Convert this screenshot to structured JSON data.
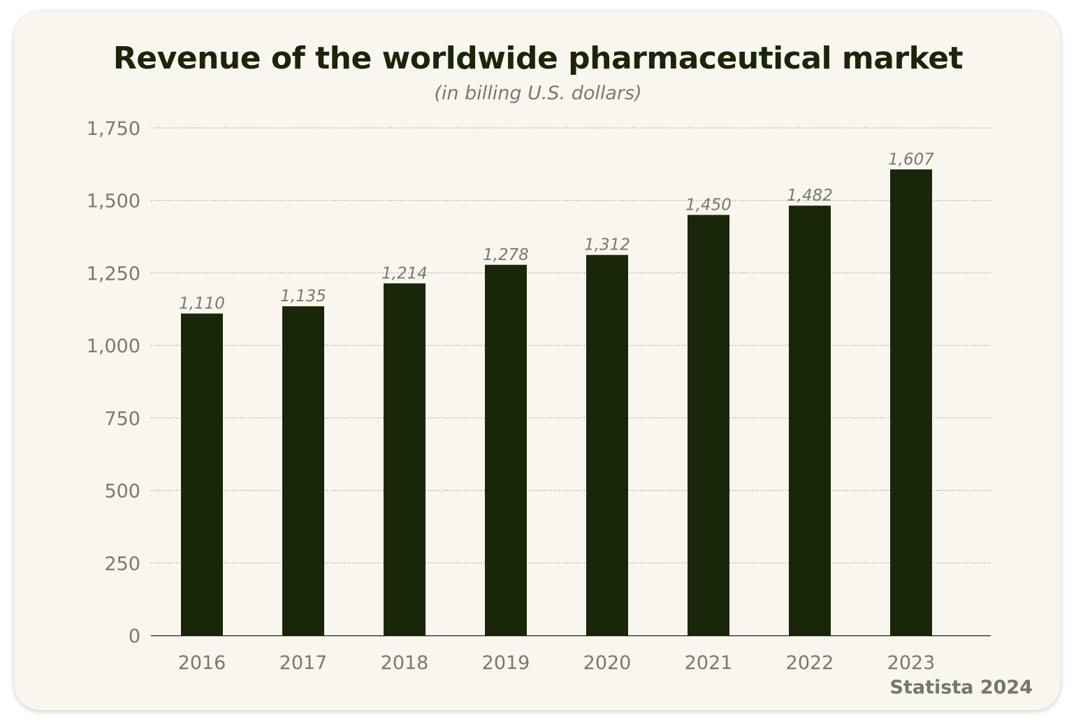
{
  "title": "Revenue of the worldwide pharmaceutical market",
  "subtitle": "(in billing U.S. dollars)",
  "source": "Statista 2024",
  "colors": {
    "bar": "#1a2608",
    "card_background": "#f9f6ef",
    "title": "#1a2608",
    "axis_text": "#7a7a6a",
    "gridline": "#8a8a80"
  },
  "chart_data": {
    "type": "bar",
    "title": "Revenue of the worldwide pharmaceutical market",
    "subtitle": "(in billing U.S. dollars)",
    "xlabel": "",
    "ylabel": "",
    "categories": [
      "2016",
      "2017",
      "2018",
      "2019",
      "2020",
      "2021",
      "2022",
      "2023"
    ],
    "values": [
      1110,
      1135,
      1214,
      1278,
      1312,
      1450,
      1482,
      1607
    ],
    "value_labels": [
      "1,110",
      "1,135",
      "1,214",
      "1,278",
      "1,312",
      "1,450",
      "1,482",
      "1,607"
    ],
    "ylim": [
      0,
      1750
    ],
    "yticks": [
      0,
      250,
      500,
      750,
      1000,
      1250,
      1500,
      1750
    ],
    "ytick_labels": [
      "0",
      "250",
      "500",
      "750",
      "1,000",
      "1,250",
      "1,500",
      "1,750"
    ],
    "grid": true,
    "legend": "none"
  }
}
